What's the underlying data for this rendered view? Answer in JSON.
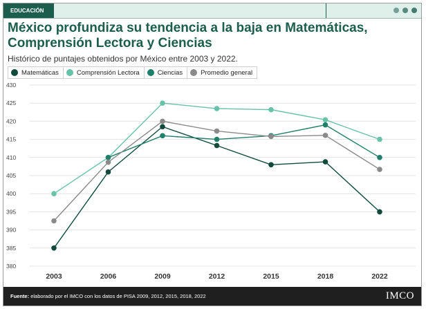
{
  "header": {
    "tag": "EDUCACIÓN"
  },
  "title": "México profundiza su tendencia a la baja en Matemáticas, Comprensión Lectora y Ciencias",
  "subtitle": "Histórico de puntajes obtenidos por México entre 2003 y 2022.",
  "footer": {
    "source_label": "Fuente:",
    "source_text": "elaborado por el IMCO con los datos de  PISA 2009, 2012, 2015, 2018, 2022",
    "logo": "IMCO"
  },
  "colors": {
    "brand": "#1c5e4e",
    "matematicas": "#0f4a3c",
    "lectora": "#66c2a8",
    "ciencias": "#1e7f6a",
    "promedio": "#8a8a8a"
  },
  "chart_data": {
    "type": "line",
    "categories": [
      "2003",
      "2006",
      "2009",
      "2012",
      "2015",
      "2018",
      "2022"
    ],
    "ylim": [
      380,
      430
    ],
    "yticks": [
      "380",
      "385",
      "390",
      "395",
      "400",
      "405",
      "410",
      "415",
      "420",
      "425",
      "430"
    ],
    "grid": true,
    "legend_position": "top-left",
    "series": [
      {
        "name": "Matemáticas",
        "color": "#0f4a3c",
        "values": [
          385,
          406,
          418.5,
          413.3,
          408,
          408.8,
          395
        ]
      },
      {
        "name": "Comprensión Lectora",
        "color": "#66c2a8",
        "values": [
          400,
          410,
          425,
          423.5,
          423.2,
          420.4,
          415
        ]
      },
      {
        "name": "Ciencias",
        "color": "#1e7f6a",
        "values": [
          null,
          410,
          416,
          415,
          416,
          419,
          410
        ]
      },
      {
        "name": "Promedio general",
        "color": "#8a8a8a",
        "values": [
          392.5,
          408.7,
          420,
          417.3,
          415.8,
          416.1,
          406.7
        ]
      }
    ]
  }
}
